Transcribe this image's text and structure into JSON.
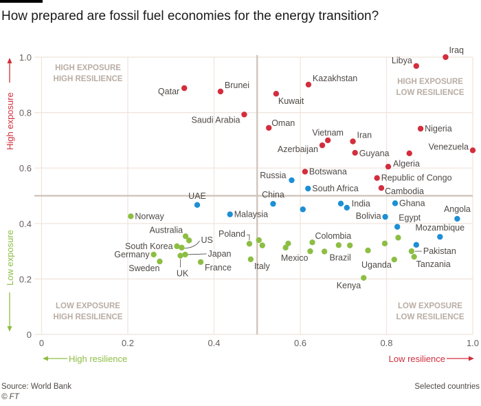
{
  "title": "How prepared are fossil fuel economies for the energy transition?",
  "footer": {
    "source": "Source: World Bank",
    "credit": "© FT",
    "note": "Selected countries"
  },
  "colors": {
    "high_exposure_low_resilience": "#d22e3d",
    "intermediate": "#1d8fd4",
    "low_exposure": "#8dbe44",
    "grid": "#efe3da",
    "midline": "#cdc1b7"
  },
  "chart_data": {
    "type": "scatter",
    "title": "How prepared are fossil fuel economies for the energy transition?",
    "xlim": [
      0,
      1.0
    ],
    "ylim": [
      0,
      1.0
    ],
    "xticks": [
      "0",
      "0.2",
      "0.4",
      "0.6",
      "0.8",
      "1.0"
    ],
    "yticks": [
      "0",
      "0.2",
      "0.4",
      "0.6",
      "0.8",
      "1.0"
    ],
    "xlabel_left": "High resilience",
    "xlabel_right": "Low resilience",
    "ylabel_top": "High exposure",
    "ylabel_bottom": "Low exposure",
    "grid": true,
    "reference_lines": {
      "x": 0.5,
      "y": 0.5
    },
    "quadrants": {
      "top_left": [
        "HIGH EXPOSURE",
        "HIGH RESILIENCE"
      ],
      "top_right": [
        "HIGH EXPOSURE",
        "LOW RESILIENCE"
      ],
      "bottom_left": [
        "LOW EXPOSURE",
        "HIGH RESILIENCE"
      ],
      "bottom_right": [
        "LOW EXPOSURE",
        "LOW RESILIENCE"
      ]
    },
    "points": [
      {
        "label": "Qatar",
        "x": 0.331,
        "y": 0.888,
        "group": "red"
      },
      {
        "label": "Brunei",
        "x": 0.415,
        "y": 0.876,
        "group": "red"
      },
      {
        "label": "Saudi Arabia",
        "x": 0.47,
        "y": 0.793,
        "group": "red"
      },
      {
        "label": "Kuwait",
        "x": 0.544,
        "y": 0.868,
        "group": "red"
      },
      {
        "label": "Kazakhstan",
        "x": 0.619,
        "y": 0.901,
        "group": "red"
      },
      {
        "label": "Oman",
        "x": 0.527,
        "y": 0.745,
        "group": "red"
      },
      {
        "label": "Vietnam",
        "x": 0.664,
        "y": 0.7,
        "group": "red"
      },
      {
        "label": "Azerbaijan",
        "x": 0.651,
        "y": 0.682,
        "group": "red"
      },
      {
        "label": "Iran",
        "x": 0.722,
        "y": 0.696,
        "group": "red"
      },
      {
        "label": "Guyana",
        "x": 0.727,
        "y": 0.655,
        "group": "red"
      },
      {
        "label": "",
        "x": 0.853,
        "y": 0.653,
        "group": "red"
      },
      {
        "label": "Nigeria",
        "x": 0.879,
        "y": 0.742,
        "group": "red"
      },
      {
        "label": "Venezuela",
        "x": 1.0,
        "y": 0.664,
        "group": "red"
      },
      {
        "label": "Libya",
        "x": 0.869,
        "y": 0.968,
        "group": "red"
      },
      {
        "label": "Iraq",
        "x": 0.937,
        "y": 1.0,
        "group": "red"
      },
      {
        "label": "Algeria",
        "x": 0.804,
        "y": 0.605,
        "group": "red"
      },
      {
        "label": "Botswana",
        "x": 0.611,
        "y": 0.587,
        "group": "red"
      },
      {
        "label": "Republic of Congo",
        "x": 0.778,
        "y": 0.564,
        "group": "red"
      },
      {
        "label": "Cambodia",
        "x": 0.788,
        "y": 0.528,
        "group": "red"
      },
      {
        "label": "Russia",
        "x": 0.58,
        "y": 0.556,
        "group": "blue"
      },
      {
        "label": "South Africa",
        "x": 0.618,
        "y": 0.526,
        "group": "blue"
      },
      {
        "label": "UAE",
        "x": 0.361,
        "y": 0.467,
        "group": "blue"
      },
      {
        "label": "Malaysia",
        "x": 0.437,
        "y": 0.433,
        "group": "blue"
      },
      {
        "label": "China",
        "x": 0.537,
        "y": 0.471,
        "group": "blue"
      },
      {
        "label": "",
        "x": 0.606,
        "y": 0.451,
        "group": "blue"
      },
      {
        "label": "",
        "x": 0.694,
        "y": 0.472,
        "group": "blue"
      },
      {
        "label": "India",
        "x": 0.708,
        "y": 0.457,
        "group": "blue"
      },
      {
        "label": "Ghana",
        "x": 0.82,
        "y": 0.473,
        "group": "blue"
      },
      {
        "label": "Bolivia",
        "x": 0.797,
        "y": 0.424,
        "group": "blue"
      },
      {
        "label": "Egypt",
        "x": 0.825,
        "y": 0.388,
        "group": "blue"
      },
      {
        "label": "Angola",
        "x": 0.964,
        "y": 0.417,
        "group": "blue"
      },
      {
        "label": "Mozambique",
        "x": 0.924,
        "y": 0.352,
        "group": "blue"
      },
      {
        "label": "",
        "x": 0.869,
        "y": 0.323,
        "group": "blue"
      },
      {
        "label": "Norway",
        "x": 0.207,
        "y": 0.426,
        "group": "green"
      },
      {
        "label": "Australia",
        "x": 0.334,
        "y": 0.354,
        "group": "green"
      },
      {
        "label": "",
        "x": 0.342,
        "y": 0.339,
        "group": "green"
      },
      {
        "label": "South Korea",
        "x": 0.314,
        "y": 0.318,
        "group": "green"
      },
      {
        "label": "US",
        "x": 0.325,
        "y": 0.313,
        "group": "green"
      },
      {
        "label": "Germany",
        "x": 0.26,
        "y": 0.288,
        "group": "green"
      },
      {
        "label": "Sweden",
        "x": 0.274,
        "y": 0.263,
        "group": "green"
      },
      {
        "label": "Japan",
        "x": 0.333,
        "y": 0.288,
        "group": "green"
      },
      {
        "label": "UK",
        "x": 0.322,
        "y": 0.284,
        "group": "green"
      },
      {
        "label": "France",
        "x": 0.369,
        "y": 0.261,
        "group": "green"
      },
      {
        "label": "Poland",
        "x": 0.482,
        "y": 0.327,
        "group": "green"
      },
      {
        "label": "",
        "x": 0.504,
        "y": 0.34,
        "group": "green"
      },
      {
        "label": "",
        "x": 0.512,
        "y": 0.321,
        "group": "green"
      },
      {
        "label": "Italy",
        "x": 0.485,
        "y": 0.271,
        "group": "green"
      },
      {
        "label": "",
        "x": 0.572,
        "y": 0.328,
        "group": "green"
      },
      {
        "label": "Mexico",
        "x": 0.566,
        "y": 0.313,
        "group": "green"
      },
      {
        "label": "",
        "x": 0.628,
        "y": 0.332,
        "group": "green"
      },
      {
        "label": "",
        "x": 0.623,
        "y": 0.3,
        "group": "green"
      },
      {
        "label": "Brazil",
        "x": 0.656,
        "y": 0.299,
        "group": "green"
      },
      {
        "label": "Colombia",
        "x": 0.689,
        "y": 0.322,
        "group": "green"
      },
      {
        "label": "",
        "x": 0.715,
        "y": 0.321,
        "group": "green"
      },
      {
        "label": "",
        "x": 0.757,
        "y": 0.303,
        "group": "green"
      },
      {
        "label": "",
        "x": 0.796,
        "y": 0.328,
        "group": "green"
      },
      {
        "label": "",
        "x": 0.827,
        "y": 0.349,
        "group": "green"
      },
      {
        "label": "Uganda",
        "x": 0.818,
        "y": 0.27,
        "group": "green"
      },
      {
        "label": "Kenya",
        "x": 0.747,
        "y": 0.204,
        "group": "green"
      },
      {
        "label": "Pakistan",
        "x": 0.858,
        "y": 0.3,
        "group": "green"
      },
      {
        "label": "Tanzania",
        "x": 0.864,
        "y": 0.28,
        "group": "green"
      }
    ]
  }
}
